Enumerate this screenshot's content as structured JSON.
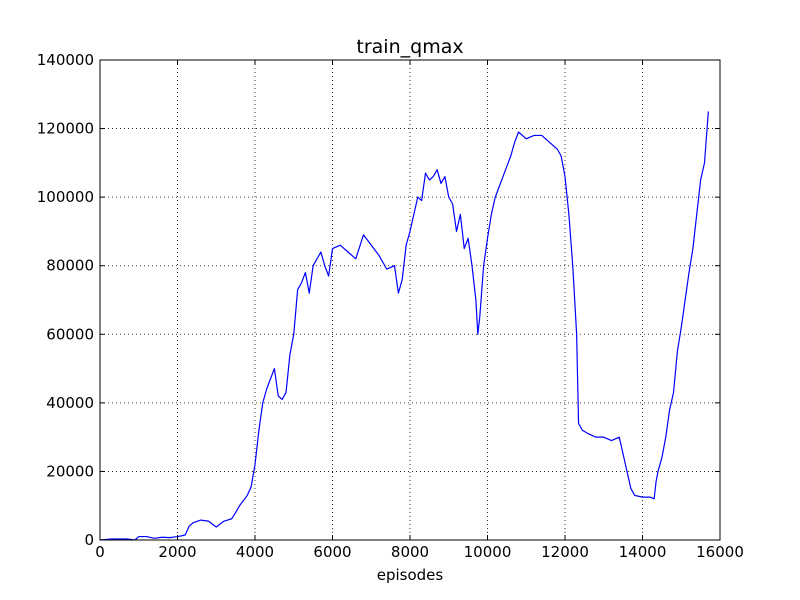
{
  "chart_data": {
    "type": "line",
    "title": "train_qmax",
    "xlabel": "episodes",
    "ylabel": "",
    "xlim": [
      0,
      16000
    ],
    "ylim": [
      0,
      140000
    ],
    "x_ticks": [
      0,
      2000,
      4000,
      6000,
      8000,
      10000,
      12000,
      14000,
      16000
    ],
    "y_ticks": [
      0,
      20000,
      40000,
      60000,
      80000,
      100000,
      120000,
      140000
    ],
    "grid": true,
    "series": [
      {
        "color": "#0000ff",
        "x": [
          0,
          300,
          700,
          900,
          1000,
          1200,
          1400,
          1600,
          1800,
          2000,
          2100,
          2200,
          2300,
          2400,
          2600,
          2800,
          3000,
          3200,
          3400,
          3500,
          3600,
          3800,
          3900,
          4000,
          4100,
          4200,
          4300,
          4400,
          4500,
          4600,
          4700,
          4800,
          4900,
          5000,
          5100,
          5200,
          5300,
          5400,
          5500,
          5600,
          5700,
          5800,
          5900,
          6000,
          6200,
          6400,
          6600,
          6800,
          7000,
          7200,
          7400,
          7600,
          7700,
          7800,
          7900,
          8000,
          8100,
          8200,
          8300,
          8400,
          8500,
          8600,
          8700,
          8800,
          8900,
          9000,
          9100,
          9200,
          9300,
          9400,
          9500,
          9600,
          9700,
          9750,
          9800,
          9900,
          10000,
          10100,
          10200,
          10400,
          10600,
          10700,
          10800,
          11000,
          11200,
          11400,
          11600,
          11800,
          11900,
          12000,
          12100,
          12200,
          12300,
          12350,
          12400,
          12450,
          12600,
          12800,
          13000,
          13200,
          13400,
          13500,
          13600,
          13700,
          13800,
          14000,
          14200,
          14300,
          14350,
          14400,
          14500,
          14600,
          14700,
          14800,
          14900,
          15000,
          15100,
          15200,
          15300,
          15400,
          15500,
          15600,
          15700
        ],
        "y": [
          0,
          300,
          300,
          0,
          1000,
          1000,
          500,
          800,
          700,
          1000,
          1200,
          1500,
          4000,
          5000,
          5800,
          5500,
          3800,
          5500,
          6200,
          8000,
          10000,
          13000,
          15500,
          22000,
          32000,
          40000,
          44000,
          47000,
          50000,
          42000,
          41000,
          43000,
          54000,
          60000,
          73000,
          75000,
          78000,
          72000,
          80000,
          82000,
          84000,
          80000,
          77000,
          85000,
          86000,
          84000,
          82000,
          89000,
          86000,
          83000,
          79000,
          80000,
          72000,
          76000,
          86000,
          90000,
          95000,
          100000,
          99000,
          107000,
          105000,
          106000,
          108000,
          104000,
          106000,
          100000,
          98000,
          90000,
          95000,
          85000,
          88000,
          80000,
          70000,
          60000,
          65000,
          80000,
          88000,
          95000,
          100000,
          106000,
          112000,
          116000,
          119000,
          117000,
          118000,
          118000,
          116000,
          114000,
          112000,
          106000,
          95000,
          80000,
          60000,
          34000,
          33000,
          32000,
          31000,
          30000,
          30000,
          29000,
          30000,
          25000,
          20000,
          15000,
          13000,
          12500,
          12500,
          12000,
          17000,
          20000,
          24000,
          30000,
          38000,
          43000,
          55000,
          62000,
          70000,
          78000,
          85000,
          95000,
          105000,
          110000,
          125000
        ]
      }
    ]
  }
}
